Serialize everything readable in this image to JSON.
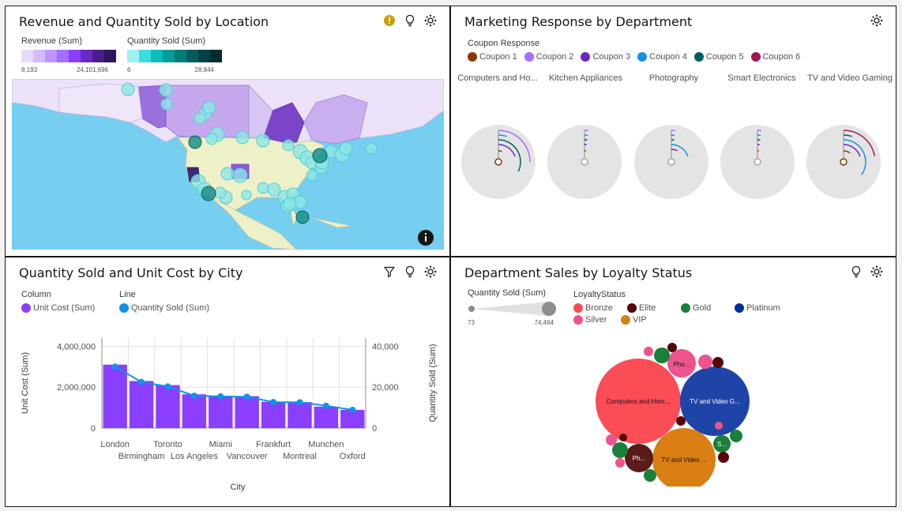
{
  "panels": {
    "map": {
      "title": "Revenue and Quantity Sold by Location",
      "legend_revenue": {
        "label": "Revenue (Sum)",
        "min": "8,193",
        "max": "24,101,696",
        "colors": [
          "#e8daff",
          "#d4bbff",
          "#be95ff",
          "#a56eff",
          "#8a3ffc",
          "#6929c4",
          "#491d8b",
          "#31135e"
        ]
      },
      "legend_qty": {
        "label": "Quantity Sold (Sum)",
        "min": "6",
        "max": "28,844",
        "colors": [
          "#9ef0f0",
          "#3ddbd9",
          "#08bdba",
          "#009d9a",
          "#007d79",
          "#005d5d",
          "#004144",
          "#022b30"
        ]
      }
    },
    "marketing": {
      "title": "Marketing Response by Department",
      "legend_title": "Coupon Response",
      "coupons": [
        {
          "label": "Coupon 1",
          "color": "#8a3800"
        },
        {
          "label": "Coupon 2",
          "color": "#a56eff"
        },
        {
          "label": "Coupon 3",
          "color": "#6929c4"
        },
        {
          "label": "Coupon 4",
          "color": "#1192e8"
        },
        {
          "label": "Coupon 5",
          "color": "#005d5d"
        },
        {
          "label": "Coupon 6",
          "color": "#9f1853"
        }
      ],
      "departments": [
        "Computers and Ho...",
        "Kitchen Appliances",
        "Photography",
        "Smart Electronics",
        "TV and Video Gaming"
      ]
    },
    "city": {
      "title": "Quantity Sold and Unit Cost by City",
      "legend_column_title": "Column",
      "legend_line_title": "Line",
      "column_label": "Unit Cost (Sum)",
      "line_label": "Quantity Sold (Sum)",
      "column_color": "#8a3ffc",
      "line_color": "#1192e8",
      "x_title": "City",
      "y_left_title": "Unit Cost (Sum)",
      "y_right_title": "Quantity Sold (Sum)",
      "y_left_ticks": [
        "4,000,000",
        "2,000,000",
        "0"
      ],
      "y_right_ticks": [
        "40,000",
        "20,000",
        "0"
      ]
    },
    "loyalty": {
      "title": "Department Sales by Loyalty Status",
      "size_legend": {
        "label": "Quantity Sold (Sum)",
        "min": "73",
        "max": "74,464"
      },
      "status_title": "LoyaltyStatus",
      "statuses": [
        {
          "label": "Bronze",
          "color": "#fa4d56"
        },
        {
          "label": "Elite",
          "color": "#570408"
        },
        {
          "label": "Gold",
          "color": "#198038"
        },
        {
          "label": "Platinum",
          "color": "#002d9c"
        },
        {
          "label": "Silver",
          "color": "#ee538b"
        },
        {
          "label": "VIP",
          "color": "#d2820e"
        }
      ],
      "bubble_labels": {
        "computers": "Computers and Hom...",
        "tv_platinum": "TV and Video G...",
        "tv_vip": "TV and Video ...",
        "photo_silver": "Pho...",
        "photo_elite": "Ph...",
        "s_gold": "S..."
      }
    }
  },
  "chart_data": {
    "type": "bar",
    "title": "Quantity Sold and Unit Cost by City",
    "xlabel": "City",
    "ylabel": "Unit Cost (Sum)",
    "y2label": "Quantity Sold (Sum)",
    "categories": [
      "London",
      "Birmingham",
      "Toronto",
      "Los Angeles",
      "Miami",
      "Vancouver",
      "Frankfurt",
      "Montreal",
      "Munchen",
      "Oxford"
    ],
    "ylim": [
      0,
      4400000
    ],
    "y2lim": [
      0,
      44000
    ],
    "series": [
      {
        "name": "Unit Cost (Sum)",
        "type": "bar",
        "axis": "left",
        "values": [
          3100000,
          2300000,
          2100000,
          1650000,
          1570000,
          1560000,
          1280000,
          1270000,
          1050000,
          890000
        ]
      },
      {
        "name": "Quantity Sold (Sum)",
        "type": "line",
        "axis": "right",
        "values": [
          30000,
          22500,
          20300,
          15800,
          15500,
          15300,
          12700,
          12600,
          10900,
          8900
        ]
      }
    ]
  }
}
